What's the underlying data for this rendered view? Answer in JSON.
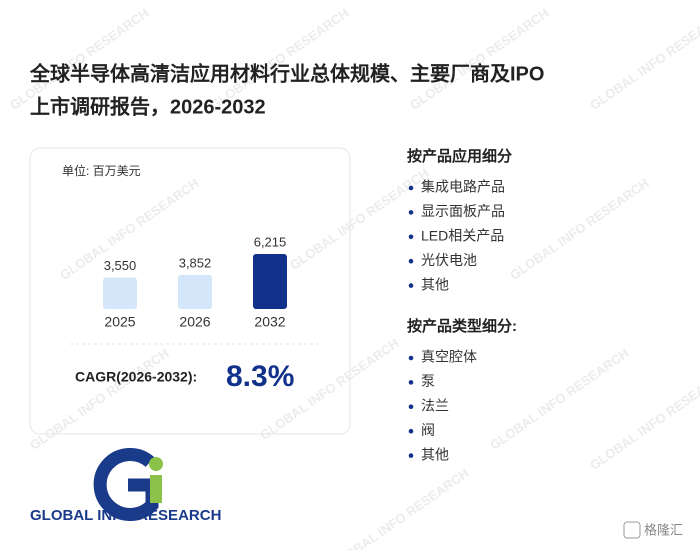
{
  "header": {
    "title_line1": "全球半导体高清洁应用材料行业总体规模、主要厂商及IPO",
    "title_line2": "上市调研报告，2026-2032"
  },
  "chart": {
    "type": "bar",
    "unit": "单位: 百万美元",
    "categories": [
      "2025",
      "2026",
      "2032"
    ],
    "values": [
      3550,
      3852,
      6215
    ],
    "value_labels": [
      "3,550",
      "3,852",
      "6,215"
    ],
    "colors": [
      "#d3e6fa",
      "#d3e6fa",
      "#11318a"
    ]
  },
  "cagr": {
    "label": "CAGR(2026-2032):",
    "value": "8.3%"
  },
  "segments": [
    {
      "heading": "按产品应用细分",
      "items": [
        "集成电路产品",
        "显示面板产品",
        "LED相关产品",
        "光伏电池",
        "其他"
      ]
    },
    {
      "heading": "按产品类型细分:",
      "items": [
        "真空腔体",
        "泵",
        "法兰",
        "阀",
        "其他"
      ]
    }
  ],
  "logo": {
    "text": "GLOBAL INFO RESEARCH"
  },
  "watermark": "GLOBAL INFO RESEARCH",
  "source": "格隆汇"
}
